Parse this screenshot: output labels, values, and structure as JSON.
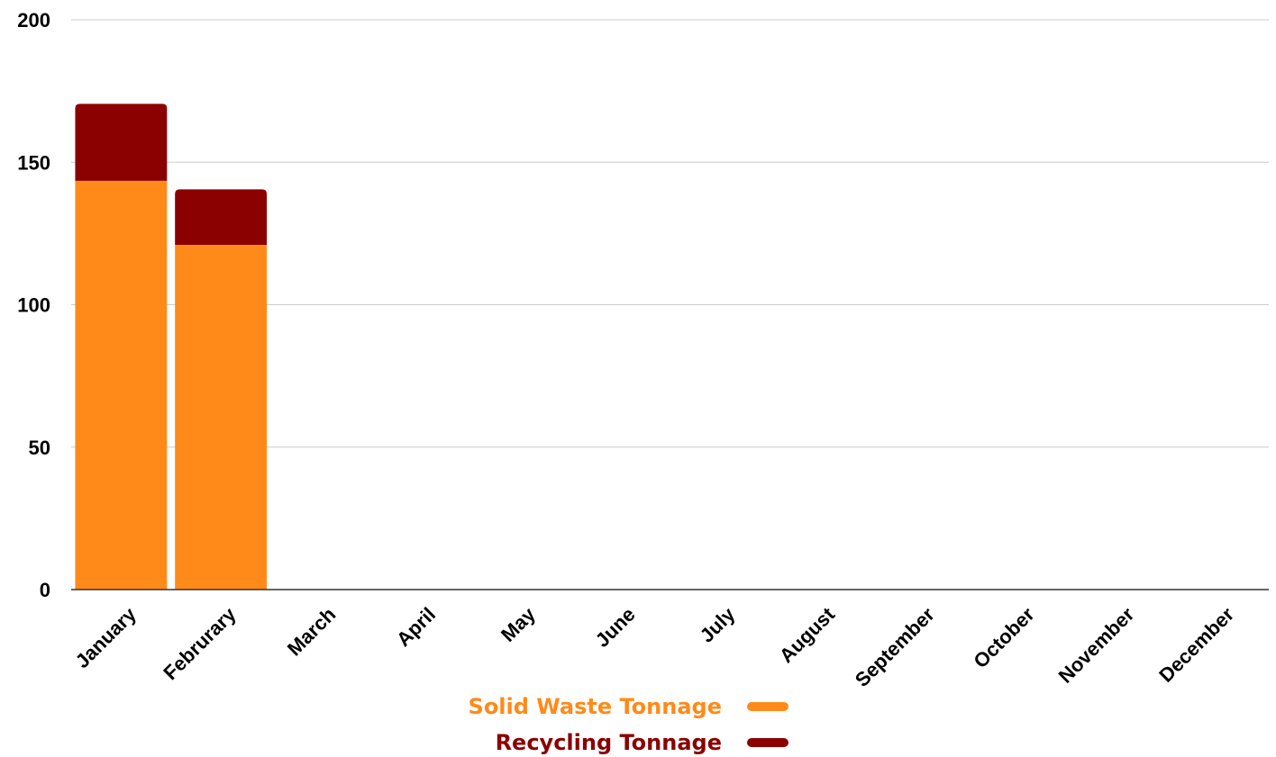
{
  "chart_data": {
    "type": "bar",
    "stacked": true,
    "categories": [
      "January",
      "Februrary",
      "March",
      "April",
      "May",
      "June",
      "July",
      "August",
      "September",
      "October",
      "November",
      "December"
    ],
    "series": [
      {
        "name": "Solid Waste Tonnage",
        "color": "#ff8a1a",
        "values": [
          143.5,
          121,
          0,
          0,
          0,
          0,
          0,
          0,
          0,
          0,
          0,
          0
        ]
      },
      {
        "name": "Recycling Tonnage",
        "color": "#8b0000",
        "values": [
          27,
          19.5,
          0,
          0,
          0,
          0,
          0,
          0,
          0,
          0,
          0,
          0
        ]
      }
    ],
    "ylim": [
      0,
      200
    ],
    "yticks": [
      0,
      50,
      100,
      150,
      200
    ],
    "grid": true,
    "legend": "bottom-center",
    "title": "",
    "xlabel": "",
    "ylabel": ""
  }
}
